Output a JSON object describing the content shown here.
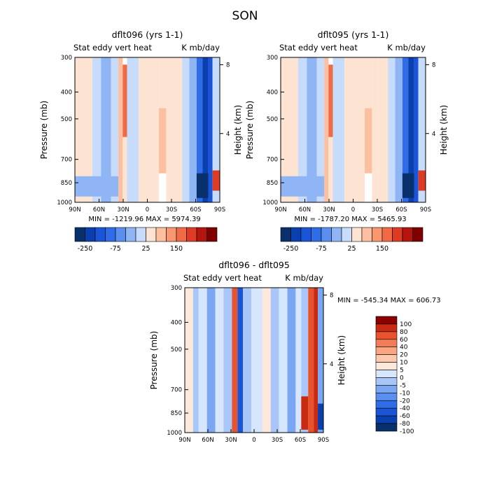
{
  "page_title": "SON",
  "colors": {
    "top_scale": [
      "#08306b",
      "#0a3fb0",
      "#1a55d8",
      "#2f6de8",
      "#5a8ff0",
      "#8fb5f5",
      "#c6dcfa",
      "#fde4d2",
      "#fcc0a0",
      "#f89670",
      "#ef6a45",
      "#de3b24",
      "#b5150f",
      "#7f0000"
    ],
    "diff_scale": [
      "#08306b",
      "#0a3fb0",
      "#1a55d8",
      "#2f6de8",
      "#5a8ff0",
      "#7aa6f2",
      "#a8c6f7",
      "#d6e6fc",
      "#fde8dc",
      "#fcc9ad",
      "#f9a584",
      "#f37d56",
      "#e8532d",
      "#c92a12",
      "#8b0000"
    ]
  },
  "chart_data": [
    {
      "type": "heatmap",
      "name": "panel-top-left",
      "title": "dflt096 (yrs 1-1)",
      "left_label": "Stat eddy vert heat",
      "right_label": "K mb/day",
      "ylabel": "Pressure (mb)",
      "y2label": "Height (km)",
      "x_ticks": [
        "90N",
        "60N",
        "30N",
        "0",
        "30S",
        "60S",
        "90S"
      ],
      "y_ticks": [
        "300",
        "400",
        "500",
        "700",
        "850",
        "1000"
      ],
      "y_tick_values": [
        300,
        400,
        500,
        700,
        850,
        1000
      ],
      "y2_ticks": [
        "8",
        "4"
      ],
      "y2_tick_values": [
        8,
        4
      ],
      "min_max": "MIN = -1219.96   MAX = 5974.39",
      "colorbar_labels": [
        "-250",
        "-75",
        "25",
        "150"
      ],
      "colorbar_label_index": [
        1,
        4,
        7,
        10
      ]
    },
    {
      "type": "heatmap",
      "name": "panel-top-right",
      "title": "dflt095 (yrs 1-1)",
      "left_label": "Stat eddy vert heat",
      "right_label": "K mb/day",
      "ylabel": "Pressure (mb)",
      "y2label": "Height (km)",
      "x_ticks": [
        "90N",
        "60N",
        "30N",
        "0",
        "30S",
        "60S",
        "90S"
      ],
      "y_ticks": [
        "300",
        "400",
        "500",
        "700",
        "850",
        "1000"
      ],
      "y_tick_values": [
        300,
        400,
        500,
        700,
        850,
        1000
      ],
      "y2_ticks": [
        "8",
        "4"
      ],
      "y2_tick_values": [
        8,
        4
      ],
      "min_max": "MIN = -1787.20   MAX = 5465.93",
      "colorbar_labels": [
        "-250",
        "-75",
        "25",
        "150"
      ],
      "colorbar_label_index": [
        1,
        4,
        7,
        10
      ]
    },
    {
      "type": "heatmap",
      "name": "panel-difference",
      "title": "dflt096 - dflt095",
      "left_label": "Stat eddy vert heat",
      "right_label": "K mb/day",
      "ylabel": "Pressure (mb)",
      "y2label": "Height (km)",
      "x_ticks": [
        "90N",
        "60N",
        "30N",
        "0",
        "30S",
        "60S",
        "90S"
      ],
      "y_ticks": [
        "300",
        "400",
        "500",
        "700",
        "850",
        "1000"
      ],
      "y_tick_values": [
        300,
        400,
        500,
        700,
        850,
        1000
      ],
      "y2_ticks": [
        "8",
        "4"
      ],
      "y2_tick_values": [
        8,
        4
      ],
      "min_max": "MIN = -545.34   MAX = 606.73",
      "colorbar_levels": [
        "100",
        "80",
        "60",
        "40",
        "20",
        "10",
        "5",
        "0",
        "-5",
        "-10",
        "-20",
        "-40",
        "-60",
        "-80",
        "-100"
      ]
    }
  ]
}
